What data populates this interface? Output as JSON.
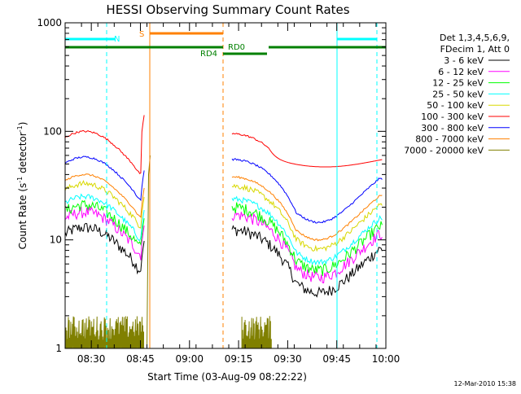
{
  "chart_data": {
    "type": "line",
    "title": "HESSI Observing Summary Count Rates",
    "xlabel": "Start Time (03-Aug-09 08:22:22)",
    "ylabel_main": "Count Rate (s",
    "ylabel_sup1": "-1",
    "ylabel_mid": " detector",
    "ylabel_sup2": "-1",
    "ylabel_end": ")",
    "yscale": "log",
    "ylim": [
      1,
      1000
    ],
    "xlim": [
      "08:22",
      "10:00"
    ],
    "x_ticks": [
      "08:30",
      "08:45",
      "09:00",
      "09:15",
      "09:30",
      "09:45",
      "10:00"
    ],
    "y_ticks": [
      "1",
      "10",
      "100",
      "1000"
    ],
    "footer_date": "12-Mar-2010 15:38",
    "legend": {
      "header1": "Det 1,3,4,5,6,9,",
      "header2": "FDecim 1, Att 0",
      "position": "right"
    },
    "series": [
      {
        "name": "3 - 6 keV",
        "color": "#000000"
      },
      {
        "name": "6 - 12 keV",
        "color": "#ff00ff"
      },
      {
        "name": "12 - 25 keV",
        "color": "#00ff00"
      },
      {
        "name": "25 - 50 keV",
        "color": "#00ffff"
      },
      {
        "name": "50 - 100 keV",
        "color": "#d8d800"
      },
      {
        "name": "100 - 300 keV",
        "color": "#ff0000"
      },
      {
        "name": "300 - 800 keV",
        "color": "#0000ff"
      },
      {
        "name": "800 - 7000 keV",
        "color": "#ff8000"
      },
      {
        "name": "7000 - 20000 keV",
        "color": "#808000"
      }
    ],
    "flag_labels": {
      "night": "N",
      "saa": "S",
      "rd4": "RD4",
      "rd0": "RD0"
    },
    "flag_colors": {
      "night": "#00ffff",
      "saa": "#ff8000",
      "decim": "#008000"
    }
  }
}
